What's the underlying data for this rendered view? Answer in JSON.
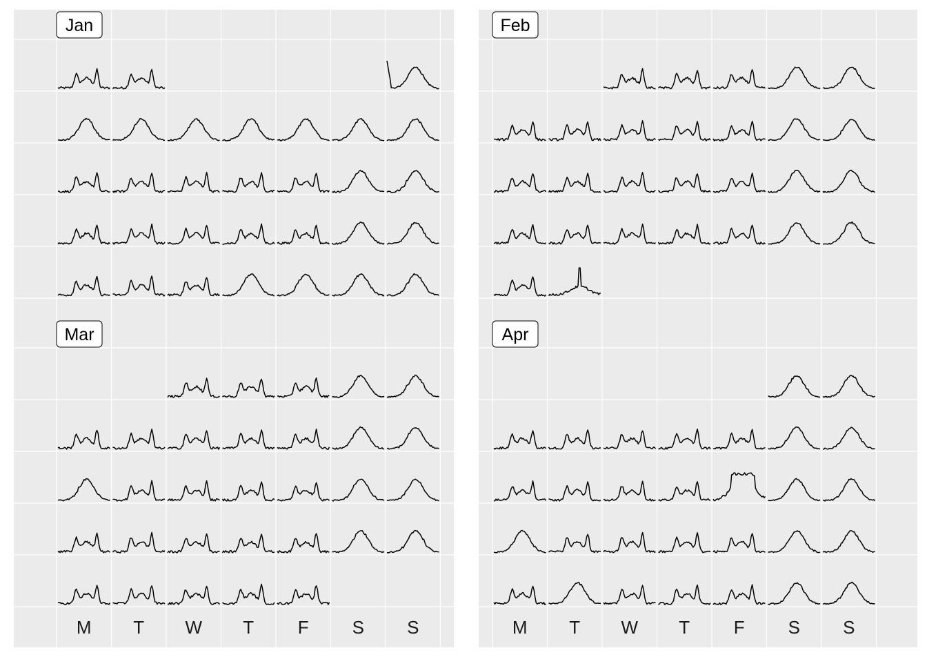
{
  "chart_data": {
    "type": "line",
    "layout": "calendar",
    "panel_background": "#ebebeb",
    "grid_color": "#ffffff",
    "line_color": "#000000",
    "weekday_labels": [
      "M",
      "T",
      "W",
      "T",
      "F",
      "S",
      "S"
    ],
    "panels": [
      {
        "month": "Jan",
        "weeks": [
          [
            "spiky",
            "spiky",
            null,
            null,
            null,
            null,
            "spike_start"
          ],
          [
            "hump",
            "hump",
            "hump",
            "hump",
            "hump",
            "hump",
            "hump"
          ],
          [
            "spiky",
            "spiky",
            "spiky",
            "spiky",
            "spiky",
            "hump",
            "hump"
          ],
          [
            "spiky",
            "spiky",
            "spiky",
            "spiky",
            "spiky",
            "hump",
            "hump"
          ],
          [
            "spiky",
            "spiky",
            "spiky",
            "hump",
            "hump",
            "hump",
            "hump"
          ]
        ]
      },
      {
        "month": "Feb",
        "weeks": [
          [
            null,
            null,
            "spiky",
            "spiky",
            "spiky",
            "hump",
            "hump"
          ],
          [
            "spiky",
            "spiky",
            "spiky",
            "spiky",
            "spiky",
            "hump",
            "hump"
          ],
          [
            "spiky",
            "spiky",
            "spiky",
            "spiky",
            "spiky",
            "hump",
            "hump"
          ],
          [
            "spiky",
            "spiky",
            "spiky",
            "spiky",
            "spiky",
            "hump",
            "hump"
          ],
          [
            "spiky",
            "spike_tall",
            null,
            null,
            null,
            null,
            null
          ]
        ]
      },
      {
        "month": "Mar",
        "weeks": [
          [
            null,
            null,
            "spiky",
            "spiky",
            "spiky",
            "hump",
            "hump"
          ],
          [
            "spiky",
            "spiky",
            "spiky",
            "spiky",
            "spiky",
            "hump",
            "hump"
          ],
          [
            "hump",
            "spiky",
            "spiky",
            "spiky",
            "spiky",
            "hump",
            "hump"
          ],
          [
            "spiky",
            "spiky",
            "spiky",
            "spiky",
            "spiky",
            "hump",
            "hump"
          ],
          [
            "spiky",
            "spiky",
            "spiky",
            "spiky",
            "spiky",
            null,
            null
          ]
        ]
      },
      {
        "month": "Apr",
        "weeks": [
          [
            null,
            null,
            null,
            null,
            null,
            "hump",
            "hump"
          ],
          [
            "spiky",
            "spiky",
            "spiky",
            "spiky",
            "spiky",
            "hump",
            "hump"
          ],
          [
            "spiky",
            "spiky",
            "spiky",
            "spiky",
            "plateau",
            "hump",
            "hump"
          ],
          [
            "hump",
            "spiky",
            "spiky",
            "spiky",
            "spiky",
            "hump",
            "hump"
          ],
          [
            "spiky",
            "hump",
            "spiky",
            "spiky",
            "spiky",
            "hump",
            "hump"
          ]
        ]
      }
    ]
  }
}
